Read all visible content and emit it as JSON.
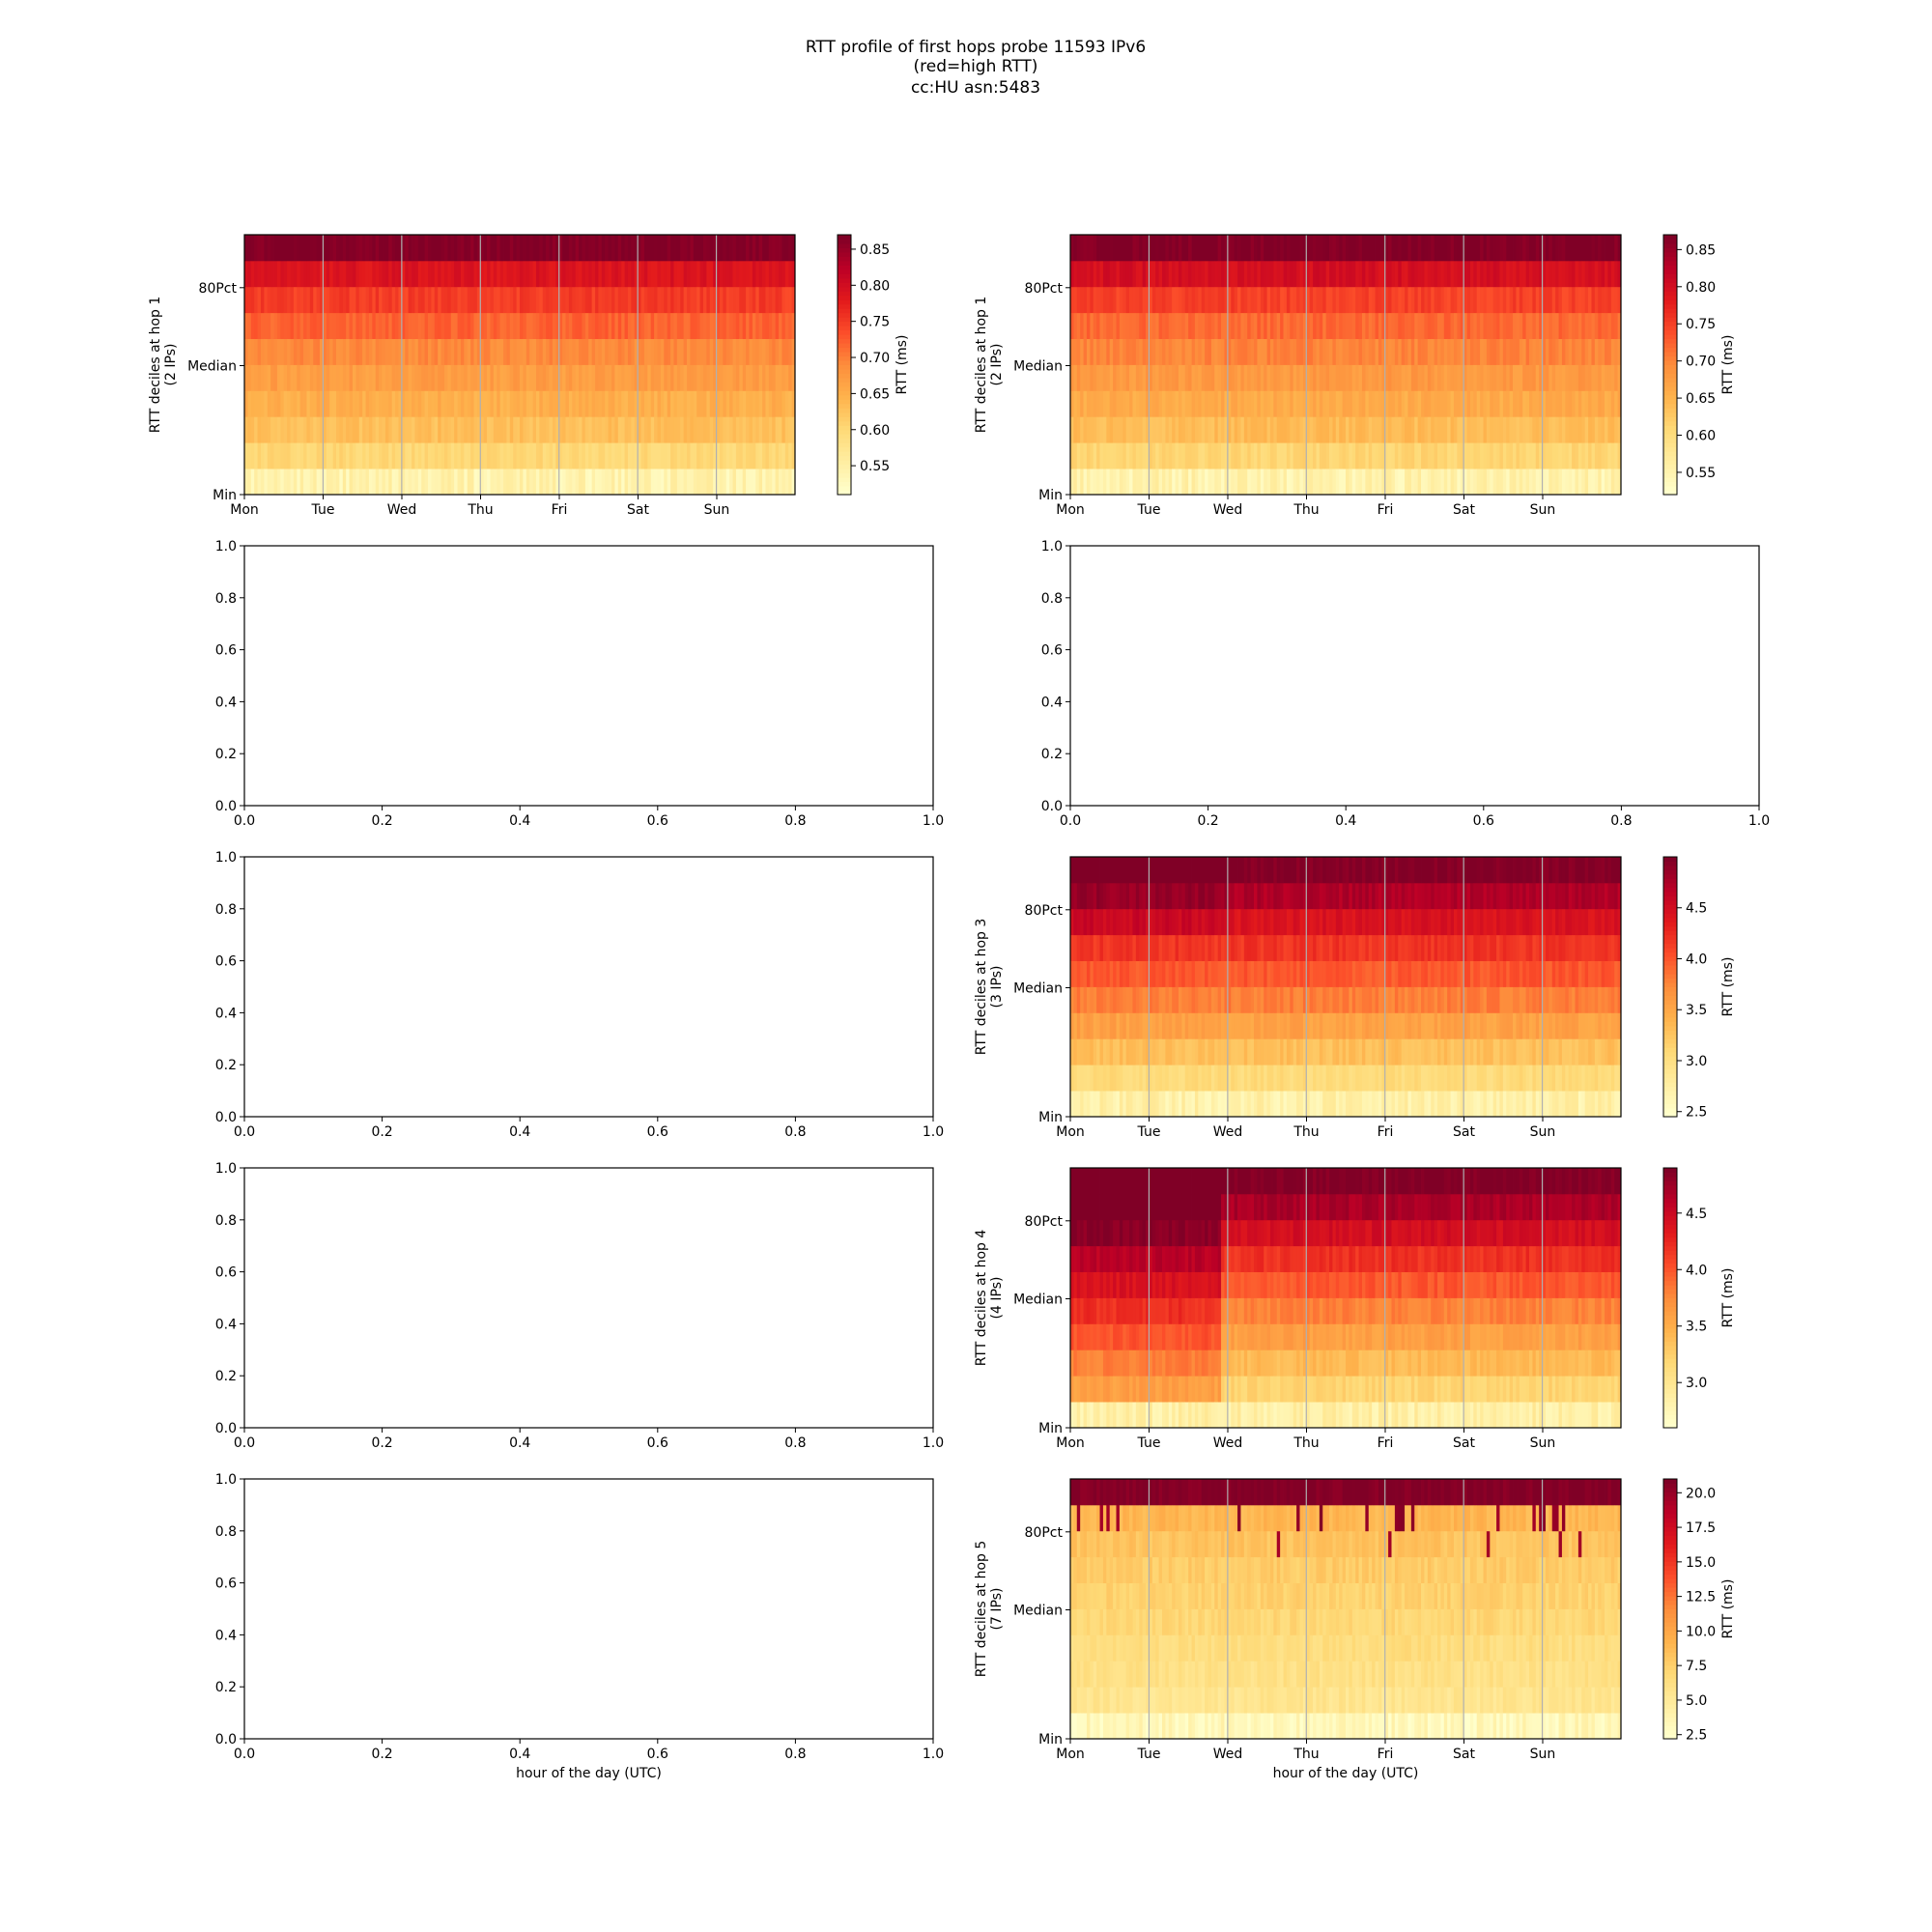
{
  "figure": {
    "title_lines": [
      "RTT profile of first hops probe 11593 IPv6",
      "(red=high RTT)",
      "cc:HU asn:5483"
    ]
  },
  "colors": {
    "colormap": "YlOrRd",
    "axes": "#000000",
    "day_gridlines": "#b0b0b0"
  },
  "chart_data": [
    {
      "id": "hop1-left",
      "type": "heatmap",
      "ylabel": "RTT deciles at hop 1\n(2 IPs)",
      "y_ticks": [
        "Min",
        "Median",
        "80Pct"
      ],
      "x_ticks": [
        "Mon",
        "Tue",
        "Wed",
        "Thu",
        "Fri",
        "Sat",
        "Sun"
      ],
      "colorbar": {
        "label": "RTT (ms)",
        "range": [
          0.51,
          0.87
        ],
        "ticks": [
          "0.55",
          "0.60",
          "0.65",
          "0.70",
          "0.75",
          "0.80",
          "0.85"
        ]
      },
      "decile_rtt_ms": [
        0.54,
        0.6,
        0.63,
        0.65,
        0.67,
        0.69,
        0.72,
        0.75,
        0.79,
        0.87
      ]
    },
    {
      "id": "hop1-right",
      "type": "heatmap",
      "ylabel": "RTT deciles at hop 1\n(2 IPs)",
      "y_ticks": [
        "Min",
        "Median",
        "80Pct"
      ],
      "x_ticks": [
        "Mon",
        "Tue",
        "Wed",
        "Thu",
        "Fri",
        "Sat",
        "Sun"
      ],
      "colorbar": {
        "label": "RTT (ms)",
        "range": [
          0.52,
          0.87
        ],
        "ticks": [
          "0.55",
          "0.60",
          "0.65",
          "0.70",
          "0.75",
          "0.80",
          "0.85"
        ]
      },
      "decile_rtt_ms": [
        0.55,
        0.61,
        0.64,
        0.66,
        0.68,
        0.7,
        0.72,
        0.75,
        0.8,
        0.87
      ]
    },
    {
      "id": "hop2-left",
      "type": "empty",
      "x_ticks": [
        "0.0",
        "0.2",
        "0.4",
        "0.6",
        "0.8",
        "1.0"
      ],
      "y_ticks": [
        "0.0",
        "0.2",
        "0.4",
        "0.6",
        "0.8",
        "1.0"
      ],
      "xlim": [
        0,
        1
      ],
      "ylim": [
        0,
        1
      ]
    },
    {
      "id": "hop2-right",
      "type": "empty",
      "x_ticks": [
        "0.0",
        "0.2",
        "0.4",
        "0.6",
        "0.8",
        "1.0"
      ],
      "y_ticks": [
        "0.0",
        "0.2",
        "0.4",
        "0.6",
        "0.8",
        "1.0"
      ],
      "xlim": [
        0,
        1
      ],
      "ylim": [
        0,
        1
      ]
    },
    {
      "id": "hop3-left",
      "type": "empty",
      "x_ticks": [
        "0.0",
        "0.2",
        "0.4",
        "0.6",
        "0.8",
        "1.0"
      ],
      "y_ticks": [
        "0.0",
        "0.2",
        "0.4",
        "0.6",
        "0.8",
        "1.0"
      ],
      "xlim": [
        0,
        1
      ],
      "ylim": [
        0,
        1
      ]
    },
    {
      "id": "hop3-right",
      "type": "heatmap",
      "ylabel": "RTT deciles at hop 3\n(3 IPs)",
      "y_ticks": [
        "Min",
        "Median",
        "80Pct"
      ],
      "x_ticks": [
        "Mon",
        "Tue",
        "Wed",
        "Thu",
        "Fri",
        "Sat",
        "Sun"
      ],
      "colorbar": {
        "label": "RTT (ms)",
        "range": [
          2.45,
          5.0
        ],
        "ticks": [
          "2.5",
          "3.0",
          "3.5",
          "4.0",
          "4.5"
        ]
      },
      "decile_rtt_ms": [
        2.7,
        3.05,
        3.3,
        3.55,
        3.8,
        4.0,
        4.2,
        4.45,
        4.75,
        5.0
      ]
    },
    {
      "id": "hop4-left",
      "type": "empty",
      "x_ticks": [
        "0.0",
        "0.2",
        "0.4",
        "0.6",
        "0.8",
        "1.0"
      ],
      "y_ticks": [
        "0.0",
        "0.2",
        "0.4",
        "0.6",
        "0.8",
        "1.0"
      ],
      "xlim": [
        0,
        1
      ],
      "ylim": [
        0,
        1
      ]
    },
    {
      "id": "hop4-right",
      "type": "heatmap",
      "ylabel": "RTT deciles at hop 4\n(4 IPs)",
      "y_ticks": [
        "Min",
        "Median",
        "80Pct"
      ],
      "x_ticks": [
        "Mon",
        "Tue",
        "Wed",
        "Thu",
        "Fri",
        "Sat",
        "Sun"
      ],
      "colorbar": {
        "label": "RTT (ms)",
        "range": [
          2.6,
          4.9
        ],
        "ticks": [
          "3.0",
          "3.5",
          "4.0",
          "4.5"
        ]
      },
      "decile_rtt_ms": [
        2.85,
        3.2,
        3.4,
        3.6,
        3.8,
        4.0,
        4.2,
        4.45,
        4.7,
        4.9
      ]
    },
    {
      "id": "hop5-left",
      "type": "empty",
      "xlabel": "hour of the day (UTC)",
      "x_ticks": [
        "0.0",
        "0.2",
        "0.4",
        "0.6",
        "0.8",
        "1.0"
      ],
      "y_ticks": [
        "0.0",
        "0.2",
        "0.4",
        "0.6",
        "0.8",
        "1.0"
      ],
      "xlim": [
        0,
        1
      ],
      "ylim": [
        0,
        1
      ]
    },
    {
      "id": "hop5-right",
      "type": "heatmap",
      "xlabel": "hour of the day (UTC)",
      "ylabel": "RTT deciles at hop 5\n(7 IPs)",
      "y_ticks": [
        "Min",
        "Median",
        "80Pct"
      ],
      "x_ticks": [
        "Mon",
        "Tue",
        "Wed",
        "Thu",
        "Fri",
        "Sat",
        "Sun"
      ],
      "colorbar": {
        "label": "RTT (ms)",
        "range": [
          2.2,
          21.0
        ],
        "ticks": [
          "2.5",
          "5.0",
          "7.5",
          "10.0",
          "12.5",
          "15.0",
          "17.5",
          "20.0"
        ]
      },
      "decile_rtt_ms": [
        3.2,
        5.5,
        6.0,
        6.4,
        6.9,
        7.3,
        7.7,
        8.2,
        9.0,
        21.0
      ]
    }
  ]
}
